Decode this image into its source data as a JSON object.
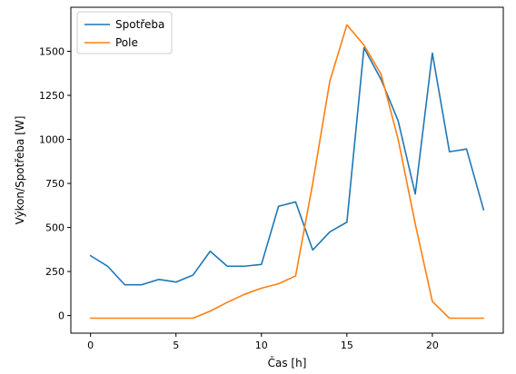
{
  "chart_data": {
    "type": "line",
    "title": "",
    "xlabel": "Čas [h]",
    "ylabel": "Výkon/Spotřeba [W]",
    "xlim": [
      -1.15,
      24.15
    ],
    "ylim": [
      -100,
      1750
    ],
    "xticks": [
      0,
      5,
      10,
      15,
      20
    ],
    "yticks": [
      0,
      250,
      500,
      750,
      1000,
      1250,
      1500
    ],
    "grid": false,
    "legend": "top-left",
    "x": [
      0,
      1,
      2,
      3,
      4,
      5,
      6,
      7,
      8,
      9,
      10,
      11,
      12,
      13,
      14,
      15,
      16,
      17,
      18,
      19,
      20,
      21,
      22,
      23
    ],
    "series": [
      {
        "name": "Spotřeba",
        "color": "#1f77b4",
        "values": [
          340,
          280,
          175,
          175,
          205,
          190,
          230,
          365,
          280,
          280,
          290,
          620,
          645,
          372,
          475,
          530,
          1520,
          1340,
          1105,
          690,
          1490,
          930,
          945,
          600
        ]
      },
      {
        "name": "Pole",
        "color": "#ff7f0e",
        "values": [
          -15,
          -15,
          -15,
          -15,
          -15,
          -15,
          -15,
          25,
          75,
          120,
          155,
          180,
          225,
          750,
          1330,
          1650,
          1535,
          1370,
          1000,
          520,
          80,
          -15,
          -15,
          -15
        ]
      }
    ]
  }
}
